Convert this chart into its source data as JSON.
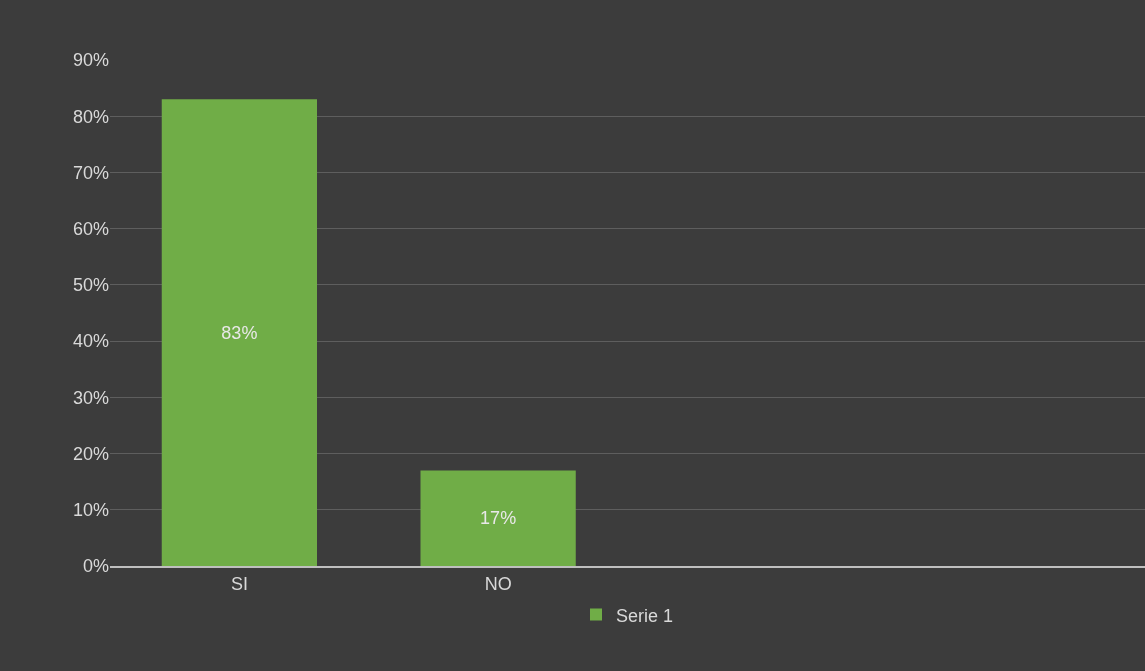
{
  "chart_data": {
    "type": "bar",
    "categories": [
      "SI",
      "NO",
      null,
      null
    ],
    "series": [
      {
        "name": "Serie 1",
        "color": "#70ad47",
        "values": [
          83,
          17,
          null,
          null
        ],
        "value_labels": [
          "83%",
          "17%",
          null,
          null
        ]
      }
    ],
    "ylim": [
      0,
      90
    ],
    "yticks": [
      {
        "value": 0,
        "label": "0%"
      },
      {
        "value": 10,
        "label": "10%"
      },
      {
        "value": 20,
        "label": "20%"
      },
      {
        "value": 30,
        "label": "30%"
      },
      {
        "value": 40,
        "label": "40%"
      },
      {
        "value": 50,
        "label": "50%"
      },
      {
        "value": 60,
        "label": "60%"
      },
      {
        "value": 70,
        "label": "70%"
      },
      {
        "value": 80,
        "label": "80%"
      },
      {
        "value": 90,
        "label": "90%"
      }
    ],
    "grid": "y",
    "legend": "bottom"
  }
}
